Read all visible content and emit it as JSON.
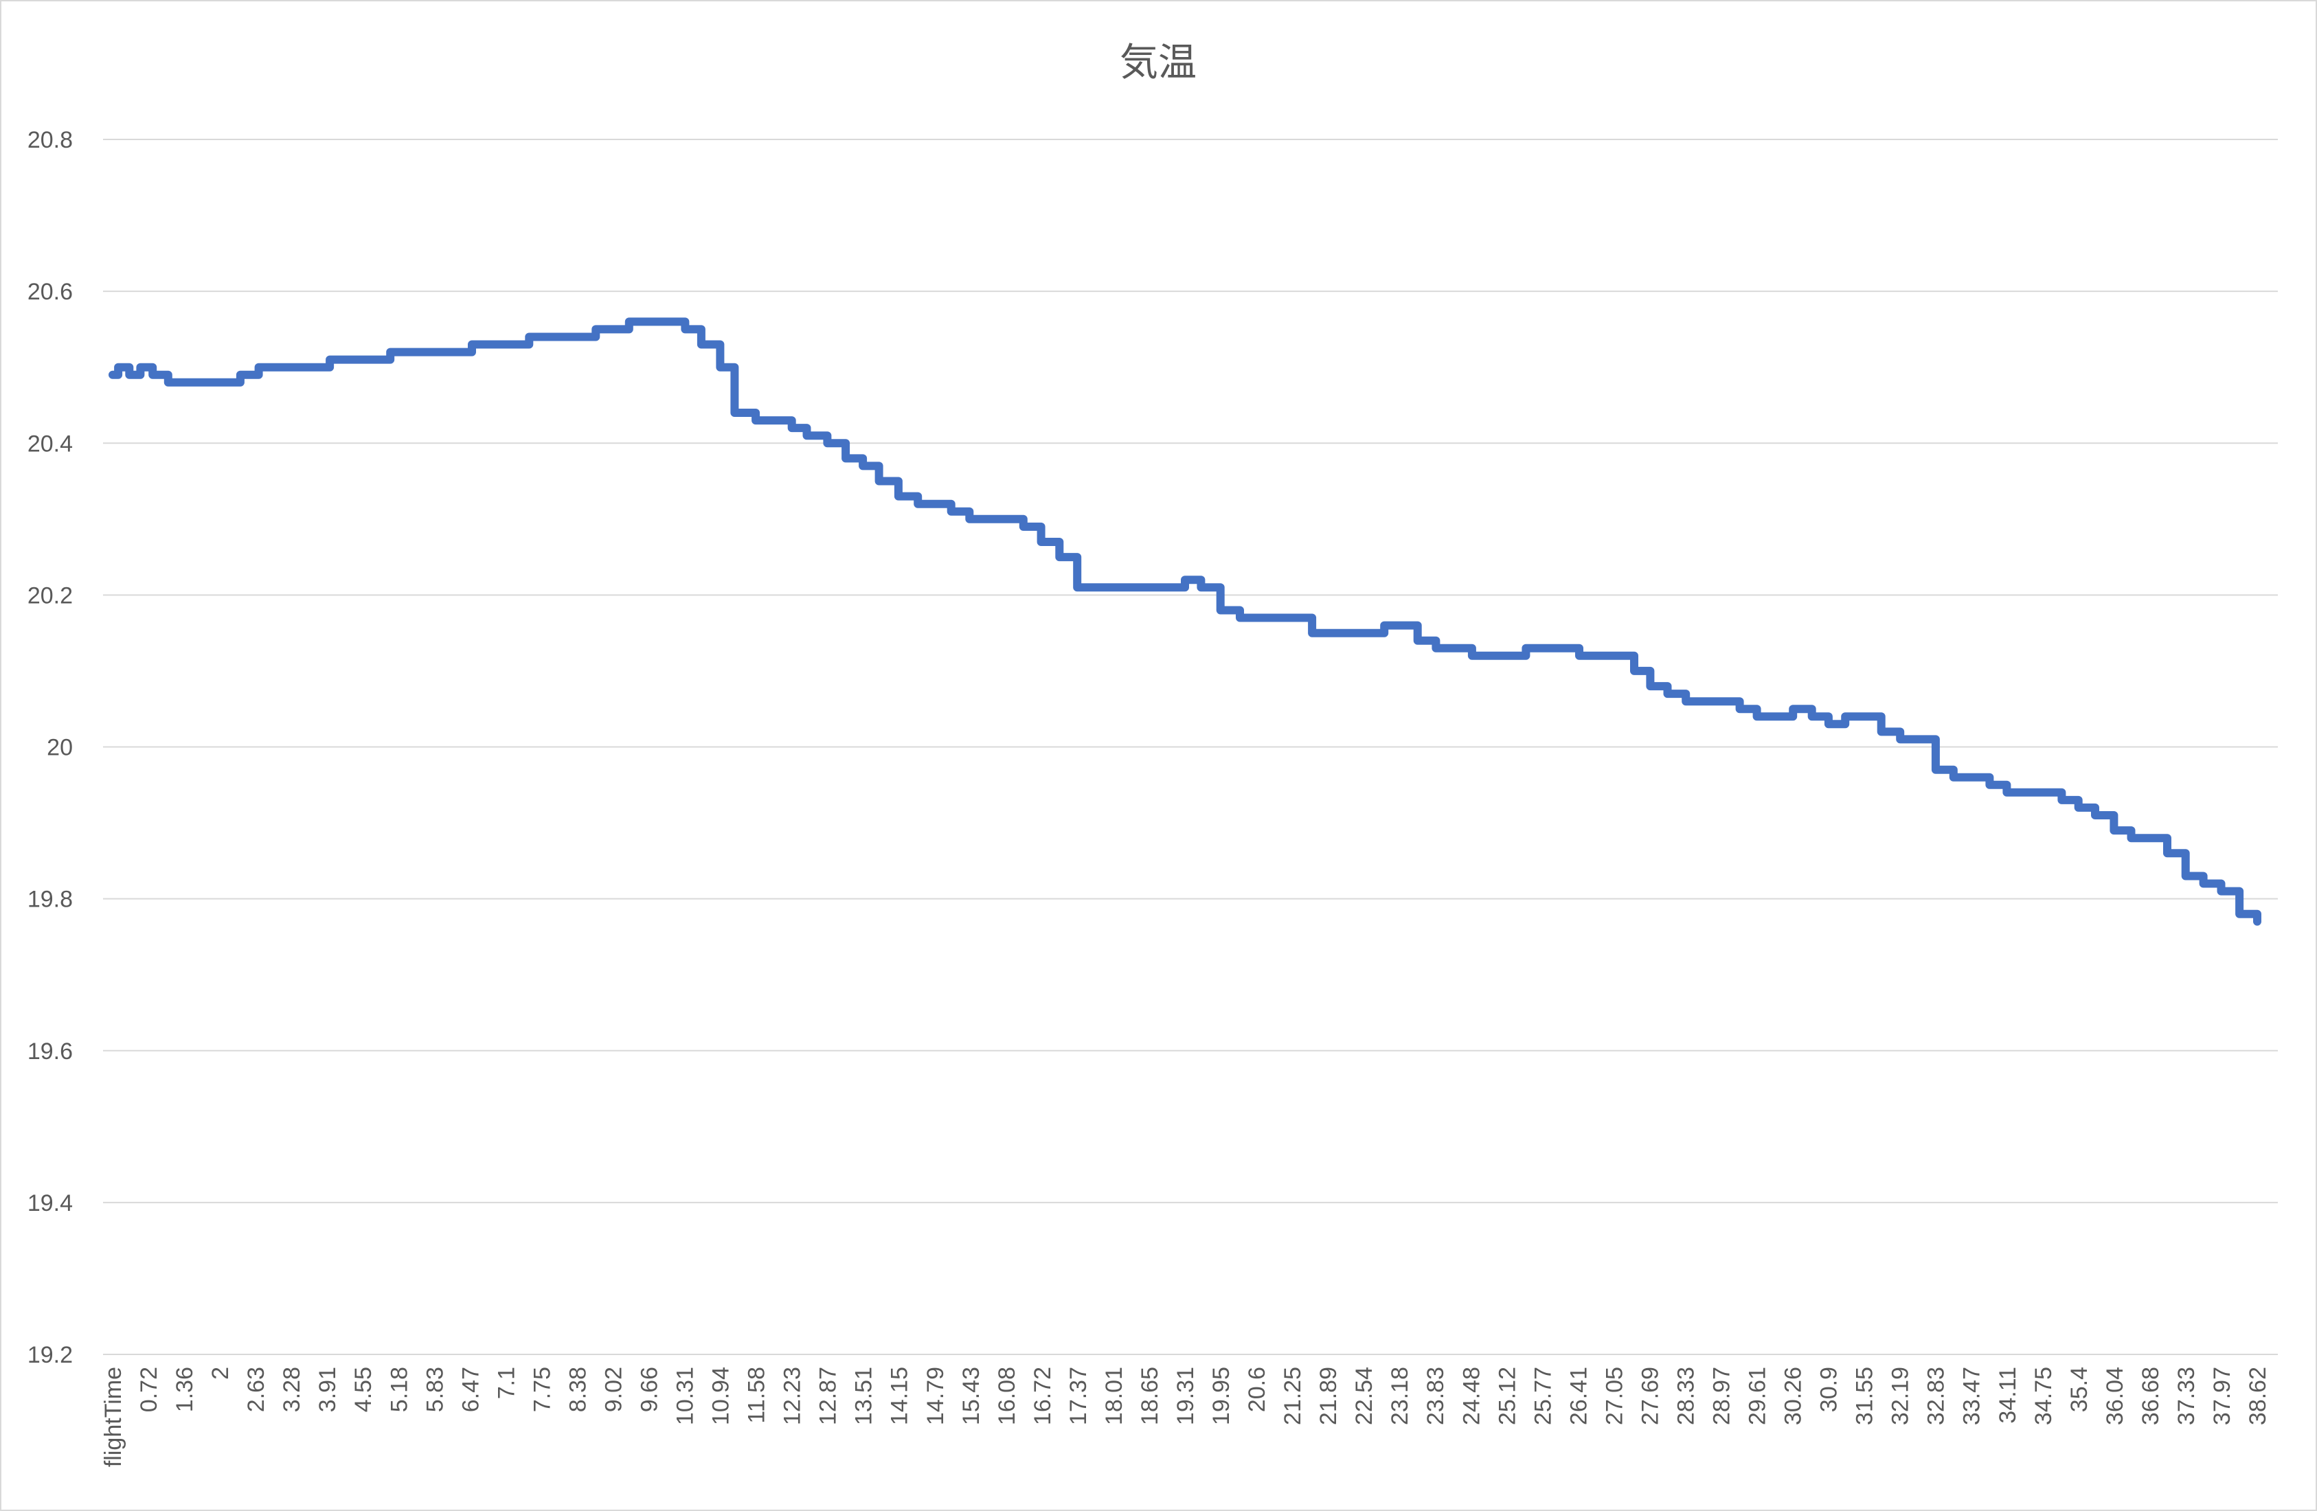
{
  "chart_data": {
    "type": "line",
    "title": "気温",
    "xlabel": "",
    "ylabel": "",
    "ylim": [
      19.2,
      20.8
    ],
    "y_ticks": [
      "20.8",
      "20.6",
      "20.4",
      "20.2",
      "20",
      "19.8",
      "19.6",
      "19.4",
      "19.2"
    ],
    "x_tick_labels": [
      "flightTime",
      "0.72",
      "1.36",
      "2",
      "2.63",
      "3.28",
      "3.91",
      "4.55",
      "5.18",
      "5.83",
      "6.47",
      "7.1",
      "7.75",
      "8.38",
      "9.02",
      "9.66",
      "10.31",
      "10.94",
      "11.58",
      "12.23",
      "12.87",
      "13.51",
      "14.15",
      "14.79",
      "15.43",
      "16.08",
      "16.72",
      "17.37",
      "18.01",
      "18.65",
      "19.31",
      "19.95",
      "20.6",
      "21.25",
      "21.89",
      "22.54",
      "23.18",
      "23.83",
      "24.48",
      "25.12",
      "25.77",
      "26.41",
      "27.05",
      "27.69",
      "28.33",
      "28.97",
      "29.61",
      "30.26",
      "30.9",
      "31.55",
      "32.19",
      "32.83",
      "33.47",
      "34.11",
      "34.75",
      "35.4",
      "36.04",
      "36.68",
      "37.33",
      "37.97",
      "38.62"
    ],
    "xlim": [
      0,
      38.62
    ],
    "grid": true,
    "legend": "none",
    "series": [
      {
        "color": "#4472c4",
        "points": [
          [
            0.0,
            20.49
          ],
          [
            0.1,
            20.5
          ],
          [
            0.3,
            20.49
          ],
          [
            0.5,
            20.5
          ],
          [
            0.72,
            20.49
          ],
          [
            1.0,
            20.48
          ],
          [
            1.36,
            20.48
          ],
          [
            1.7,
            20.48
          ],
          [
            2.0,
            20.48
          ],
          [
            2.3,
            20.49
          ],
          [
            2.63,
            20.5
          ],
          [
            3.0,
            20.5
          ],
          [
            3.28,
            20.5
          ],
          [
            3.6,
            20.5
          ],
          [
            3.91,
            20.51
          ],
          [
            4.2,
            20.51
          ],
          [
            4.55,
            20.51
          ],
          [
            5.0,
            20.52
          ],
          [
            5.18,
            20.52
          ],
          [
            5.5,
            20.52
          ],
          [
            5.83,
            20.52
          ],
          [
            6.1,
            20.52
          ],
          [
            6.47,
            20.53
          ],
          [
            6.8,
            20.53
          ],
          [
            7.1,
            20.53
          ],
          [
            7.5,
            20.54
          ],
          [
            7.75,
            20.54
          ],
          [
            8.1,
            20.54
          ],
          [
            8.38,
            20.54
          ],
          [
            8.7,
            20.55
          ],
          [
            9.02,
            20.55
          ],
          [
            9.3,
            20.56
          ],
          [
            9.66,
            20.56
          ],
          [
            10.0,
            20.56
          ],
          [
            10.31,
            20.55
          ],
          [
            10.6,
            20.53
          ],
          [
            10.94,
            20.5
          ],
          [
            11.2,
            20.44
          ],
          [
            11.58,
            20.43
          ],
          [
            11.9,
            20.43
          ],
          [
            12.23,
            20.42
          ],
          [
            12.5,
            20.41
          ],
          [
            12.87,
            20.4
          ],
          [
            13.2,
            20.38
          ],
          [
            13.51,
            20.37
          ],
          [
            13.8,
            20.35
          ],
          [
            14.15,
            20.33
          ],
          [
            14.5,
            20.32
          ],
          [
            14.79,
            20.32
          ],
          [
            15.1,
            20.31
          ],
          [
            15.43,
            20.3
          ],
          [
            15.8,
            20.3
          ],
          [
            16.08,
            20.3
          ],
          [
            16.4,
            20.29
          ],
          [
            16.72,
            20.27
          ],
          [
            17.05,
            20.25
          ],
          [
            17.37,
            20.21
          ],
          [
            17.7,
            20.21
          ],
          [
            18.01,
            20.21
          ],
          [
            18.3,
            20.21
          ],
          [
            18.65,
            20.21
          ],
          [
            19.0,
            20.21
          ],
          [
            19.31,
            20.22
          ],
          [
            19.6,
            20.21
          ],
          [
            19.95,
            20.18
          ],
          [
            20.3,
            20.17
          ],
          [
            20.6,
            20.17
          ],
          [
            20.9,
            20.17
          ],
          [
            21.25,
            20.17
          ],
          [
            21.6,
            20.15
          ],
          [
            21.89,
            20.15
          ],
          [
            22.2,
            20.15
          ],
          [
            22.54,
            20.15
          ],
          [
            22.9,
            20.16
          ],
          [
            23.18,
            20.16
          ],
          [
            23.5,
            20.14
          ],
          [
            23.83,
            20.13
          ],
          [
            24.15,
            20.13
          ],
          [
            24.48,
            20.12
          ],
          [
            24.8,
            20.12
          ],
          [
            25.12,
            20.12
          ],
          [
            25.45,
            20.13
          ],
          [
            25.77,
            20.13
          ],
          [
            26.1,
            20.13
          ],
          [
            26.41,
            20.12
          ],
          [
            26.7,
            20.12
          ],
          [
            27.05,
            20.12
          ],
          [
            27.4,
            20.1
          ],
          [
            27.69,
            20.08
          ],
          [
            28.0,
            20.07
          ],
          [
            28.33,
            20.06
          ],
          [
            28.65,
            20.06
          ],
          [
            28.97,
            20.06
          ],
          [
            29.3,
            20.05
          ],
          [
            29.61,
            20.04
          ],
          [
            29.95,
            20.04
          ],
          [
            30.26,
            20.05
          ],
          [
            30.6,
            20.04
          ],
          [
            30.9,
            20.03
          ],
          [
            31.2,
            20.04
          ],
          [
            31.55,
            20.04
          ],
          [
            31.85,
            20.02
          ],
          [
            32.19,
            20.01
          ],
          [
            32.5,
            20.01
          ],
          [
            32.83,
            19.97
          ],
          [
            33.15,
            19.96
          ],
          [
            33.47,
            19.96
          ],
          [
            33.8,
            19.95
          ],
          [
            34.11,
            19.94
          ],
          [
            34.45,
            19.94
          ],
          [
            34.75,
            19.94
          ],
          [
            35.1,
            19.93
          ],
          [
            35.4,
            19.92
          ],
          [
            35.7,
            19.91
          ],
          [
            36.04,
            19.89
          ],
          [
            36.35,
            19.88
          ],
          [
            36.68,
            19.88
          ],
          [
            37.0,
            19.86
          ],
          [
            37.33,
            19.83
          ],
          [
            37.65,
            19.82
          ],
          [
            37.97,
            19.81
          ],
          [
            38.3,
            19.78
          ],
          [
            38.62,
            19.77
          ]
        ]
      }
    ]
  }
}
